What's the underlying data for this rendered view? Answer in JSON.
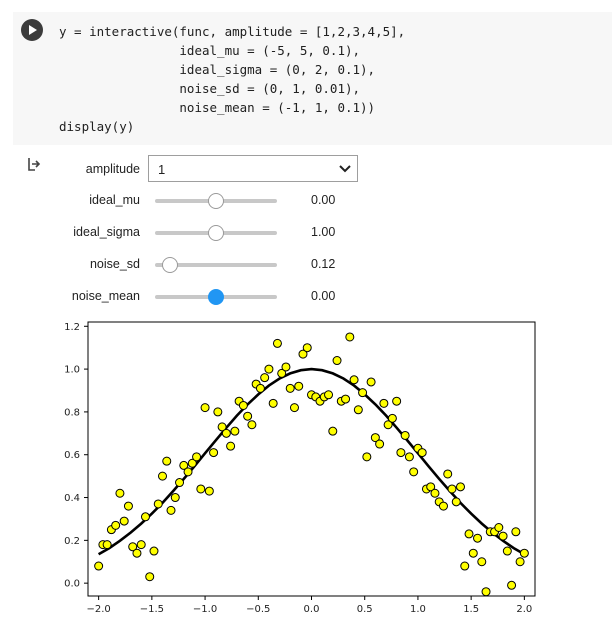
{
  "code_cell": {
    "lines": [
      "y = interactive(func, amplitude = [1,2,3,4,5],",
      "                ideal_mu = (-5, 5, 0.1),",
      "                ideal_sigma = (0, 2, 0.1),",
      "                noise_sd = (0, 1, 0.01),",
      "                noise_mean = (-1, 1, 0.1))",
      "display(y)"
    ]
  },
  "widgets": {
    "amplitude": {
      "label": "amplitude",
      "value": "1"
    },
    "ideal_mu": {
      "label": "ideal_mu",
      "value": "0.00",
      "fraction": 0.5
    },
    "ideal_sigma": {
      "label": "ideal_sigma",
      "value": "1.00",
      "fraction": 0.5
    },
    "noise_sd": {
      "label": "noise_sd",
      "value": "0.12",
      "fraction": 0.12
    },
    "noise_mean": {
      "label": "noise_mean",
      "value": "0.00",
      "fraction": 0.5
    }
  },
  "colors": {
    "accent": "#2196f3",
    "points": "#ffff00",
    "curve": "#000000"
  },
  "chart_data": {
    "type": "scatter",
    "xlim": [
      -2.1,
      2.1
    ],
    "ylim": [
      -0.06,
      1.22
    ],
    "xticks": [
      "−2.0",
      "−1.5",
      "−1.0",
      "−0.5",
      "0.0",
      "0.5",
      "1.0",
      "1.5",
      "2.0"
    ],
    "xtick_values": [
      -2.0,
      -1.5,
      -1.0,
      -0.5,
      0.0,
      0.5,
      1.0,
      1.5,
      2.0
    ],
    "yticks": [
      "0.0",
      "0.2",
      "0.4",
      "0.6",
      "0.8",
      "1.0",
      "1.2"
    ],
    "ytick_values": [
      0.0,
      0.2,
      0.4,
      0.6,
      0.8,
      1.0,
      1.2
    ],
    "grid": false,
    "series": [
      {
        "kind": "scatter",
        "x": [
          -2.0,
          -1.96,
          -1.92,
          -1.88,
          -1.84,
          -1.8,
          -1.76,
          -1.72,
          -1.68,
          -1.64,
          -1.6,
          -1.56,
          -1.52,
          -1.48,
          -1.44,
          -1.4,
          -1.36,
          -1.32,
          -1.28,
          -1.24,
          -1.2,
          -1.16,
          -1.12,
          -1.08,
          -1.04,
          -1.0,
          -0.96,
          -0.92,
          -0.88,
          -0.84,
          -0.8,
          -0.76,
          -0.72,
          -0.68,
          -0.64,
          -0.6,
          -0.56,
          -0.52,
          -0.48,
          -0.44,
          -0.4,
          -0.36,
          -0.32,
          -0.28,
          -0.24,
          -0.2,
          -0.16,
          -0.12,
          -0.08,
          -0.04,
          0.0,
          0.04,
          0.08,
          0.12,
          0.16,
          0.2,
          0.24,
          0.28,
          0.32,
          0.36,
          0.4,
          0.44,
          0.48,
          0.52,
          0.56,
          0.6,
          0.64,
          0.68,
          0.72,
          0.76,
          0.8,
          0.84,
          0.88,
          0.92,
          0.96,
          1.0,
          1.04,
          1.08,
          1.12,
          1.16,
          1.2,
          1.24,
          1.28,
          1.32,
          1.36,
          1.4,
          1.44,
          1.48,
          1.52,
          1.56,
          1.6,
          1.64,
          1.68,
          1.72,
          1.76,
          1.8,
          1.84,
          1.88,
          1.92,
          1.96,
          2.0
        ],
        "y": [
          0.08,
          0.18,
          0.18,
          0.25,
          0.27,
          0.42,
          0.29,
          0.36,
          0.17,
          0.14,
          0.18,
          0.31,
          0.03,
          0.15,
          0.37,
          0.5,
          0.57,
          0.34,
          0.4,
          0.47,
          0.55,
          0.52,
          0.56,
          0.59,
          0.44,
          0.82,
          0.43,
          0.61,
          0.8,
          0.73,
          0.7,
          0.64,
          0.71,
          0.85,
          0.83,
          0.78,
          0.74,
          0.93,
          0.91,
          0.96,
          1.0,
          0.84,
          1.12,
          0.98,
          1.01,
          0.91,
          0.82,
          0.92,
          1.07,
          1.1,
          0.88,
          0.87,
          0.85,
          0.87,
          0.88,
          0.71,
          1.04,
          0.85,
          0.86,
          1.15,
          0.95,
          0.81,
          0.89,
          0.59,
          0.94,
          0.68,
          0.65,
          0.84,
          0.74,
          0.77,
          0.85,
          0.61,
          0.69,
          0.59,
          0.52,
          0.63,
          0.61,
          0.44,
          0.45,
          0.42,
          0.38,
          0.36,
          0.51,
          0.44,
          0.38,
          0.45,
          0.08,
          0.23,
          0.14,
          0.21,
          0.1,
          -0.04,
          0.24,
          0.24,
          0.26,
          0.22,
          0.15,
          -0.01,
          0.24,
          0.1,
          0.14
        ]
      },
      {
        "kind": "line",
        "x": [
          -2.0,
          -1.9,
          -1.8,
          -1.7,
          -1.6,
          -1.5,
          -1.4,
          -1.3,
          -1.2,
          -1.1,
          -1.0,
          -0.9,
          -0.8,
          -0.7,
          -0.6,
          -0.5,
          -0.4,
          -0.3,
          -0.2,
          -0.1,
          0.0,
          0.1,
          0.2,
          0.3,
          0.4,
          0.5,
          0.6,
          0.7,
          0.8,
          0.9,
          1.0,
          1.1,
          1.2,
          1.3,
          1.4,
          1.5,
          1.6,
          1.7,
          1.8,
          1.9,
          2.0
        ],
        "y": [
          0.135,
          0.164,
          0.198,
          0.236,
          0.278,
          0.325,
          0.375,
          0.43,
          0.487,
          0.546,
          0.607,
          0.667,
          0.726,
          0.783,
          0.835,
          0.882,
          0.923,
          0.956,
          0.98,
          0.995,
          1.0,
          0.995,
          0.98,
          0.956,
          0.923,
          0.882,
          0.835,
          0.783,
          0.726,
          0.667,
          0.607,
          0.546,
          0.487,
          0.43,
          0.375,
          0.325,
          0.278,
          0.236,
          0.198,
          0.164,
          0.135
        ]
      }
    ]
  }
}
